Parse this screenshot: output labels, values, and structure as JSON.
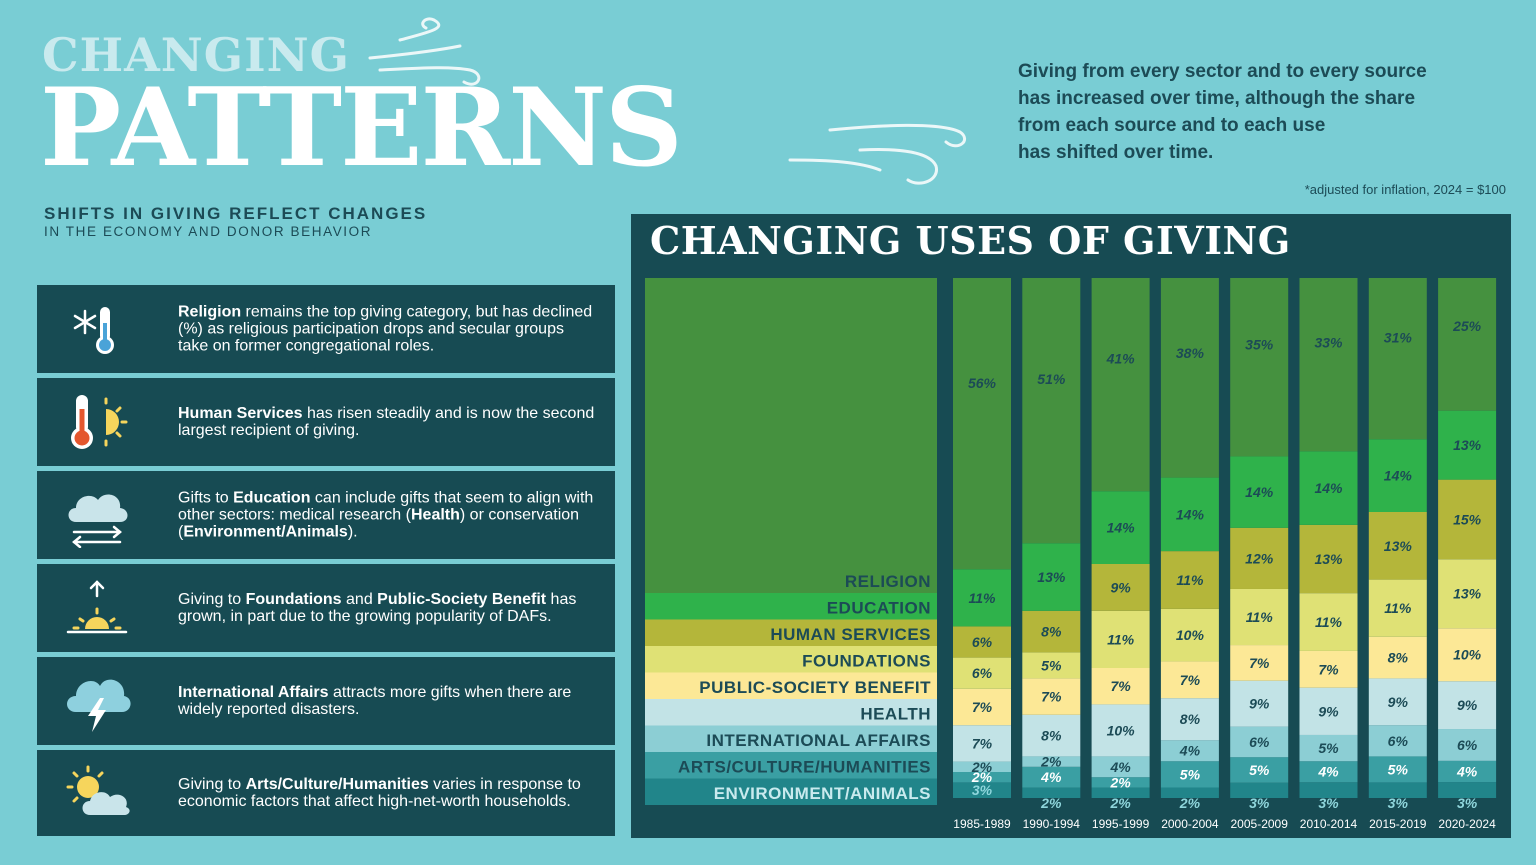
{
  "header": {
    "title_line1": "CHANGING",
    "title_line2": "PATTERNS",
    "subtitle_line1": "SHIFTS IN GIVING REFLECT CHANGES",
    "subtitle_line2": "IN THE ECONOMY AND DONOR BEHAVIOR",
    "intro_lines": [
      "Giving from every sector and to every source",
      "has increased over time, although the share",
      "from each source and to each use",
      "has shifted over time."
    ],
    "footnote": "*adjusted for inflation, 2024 = $100"
  },
  "info_cards": [
    {
      "icon": "snowflake-thermometer-icon",
      "parts": [
        {
          "b": "Religion"
        },
        {
          "t": " remains the top giving category, but has declined (%) as religious participation drops and secular groups take on former congregational roles."
        }
      ]
    },
    {
      "icon": "thermometer-sun-icon",
      "parts": [
        {
          "b": "Human Services"
        },
        {
          "t": " has risen steadily and is now the second largest recipient of giving."
        }
      ]
    },
    {
      "icon": "cloud-arrows-icon",
      "parts": [
        {
          "t": "Gifts to "
        },
        {
          "b": "Education"
        },
        {
          "t": " can include gifts that seem to align with other sectors: medical research ("
        },
        {
          "b": "Health"
        },
        {
          "t": ") or conservation ("
        },
        {
          "b": "Environment/Animals"
        },
        {
          "t": ")."
        }
      ]
    },
    {
      "icon": "sunrise-icon",
      "parts": [
        {
          "t": "Giving to "
        },
        {
          "b": "Foundations"
        },
        {
          "t": " and "
        },
        {
          "b": "Public-Society Benefit"
        },
        {
          "t": " has grown, in part due to the growing popularity of DAFs."
        }
      ]
    },
    {
      "icon": "storm-cloud-icon",
      "parts": [
        {
          "b": "International Affairs"
        },
        {
          "t": " attracts more gifts when there are widely reported disasters."
        }
      ]
    },
    {
      "icon": "sun-cloud-icon",
      "parts": [
        {
          "t": "Giving to "
        },
        {
          "b": "Arts/Culture/Humanities"
        },
        {
          "t": " varies in response to economic factors that affect high-net-worth households."
        }
      ]
    }
  ],
  "colors": {
    "background": "#79cdd4",
    "panel": "#174b53",
    "religion": "#45913f",
    "education": "#2fb24b",
    "human_services": "#b4b63a",
    "foundations": "#dfe175",
    "public_society_benefit": "#fce896",
    "health": "#c2e3e6",
    "international_affairs": "#8cced4",
    "arts_culture_humanities": "#3a9fa3",
    "environment_animals": "#21858a"
  },
  "chart_data": {
    "type": "bar",
    "stacked": true,
    "normalized": true,
    "title": "CHANGING USES OF GIVING",
    "categories": [
      "1985-1989",
      "1990-1994",
      "1995-1999",
      "2000-2004",
      "2005-2009",
      "2010-2014",
      "2015-2019",
      "2020-2024"
    ],
    "series": [
      {
        "name": "ENVIRONMENT/ANIMALS",
        "values": [
          3,
          2,
          2,
          2,
          3,
          3,
          3,
          3
        ]
      },
      {
        "name": "ARTS/CULTURE/HUMANITIES",
        "values": [
          2,
          4,
          2,
          5,
          5,
          4,
          5,
          4
        ]
      },
      {
        "name": "INTERNATIONAL AFFAIRS",
        "values": [
          2,
          2,
          4,
          4,
          6,
          5,
          6,
          6
        ]
      },
      {
        "name": "HEALTH",
        "values": [
          7,
          8,
          10,
          8,
          9,
          9,
          9,
          9
        ]
      },
      {
        "name": "PUBLIC-SOCIETY BENEFIT",
        "values": [
          7,
          7,
          7,
          7,
          7,
          7,
          8,
          10
        ]
      },
      {
        "name": "FOUNDATIONS",
        "values": [
          6,
          5,
          11,
          10,
          11,
          11,
          11,
          13
        ]
      },
      {
        "name": "HUMAN SERVICES",
        "values": [
          6,
          8,
          9,
          11,
          12,
          13,
          13,
          15
        ]
      },
      {
        "name": "EDUCATION",
        "values": [
          11,
          13,
          14,
          14,
          14,
          14,
          14,
          13
        ]
      },
      {
        "name": "RELIGION",
        "values": [
          56,
          51,
          41,
          38,
          35,
          33,
          31,
          25
        ]
      }
    ],
    "legend_order": [
      "RELIGION",
      "EDUCATION",
      "HUMAN SERVICES",
      "FOUNDATIONS",
      "PUBLIC-SOCIETY BENEFIT",
      "HEALTH",
      "INTERNATIONAL AFFAIRS",
      "ARTS/CULTURE/HUMANITIES",
      "ENVIRONMENT/ANIMALS"
    ],
    "value_suffix": "%"
  }
}
